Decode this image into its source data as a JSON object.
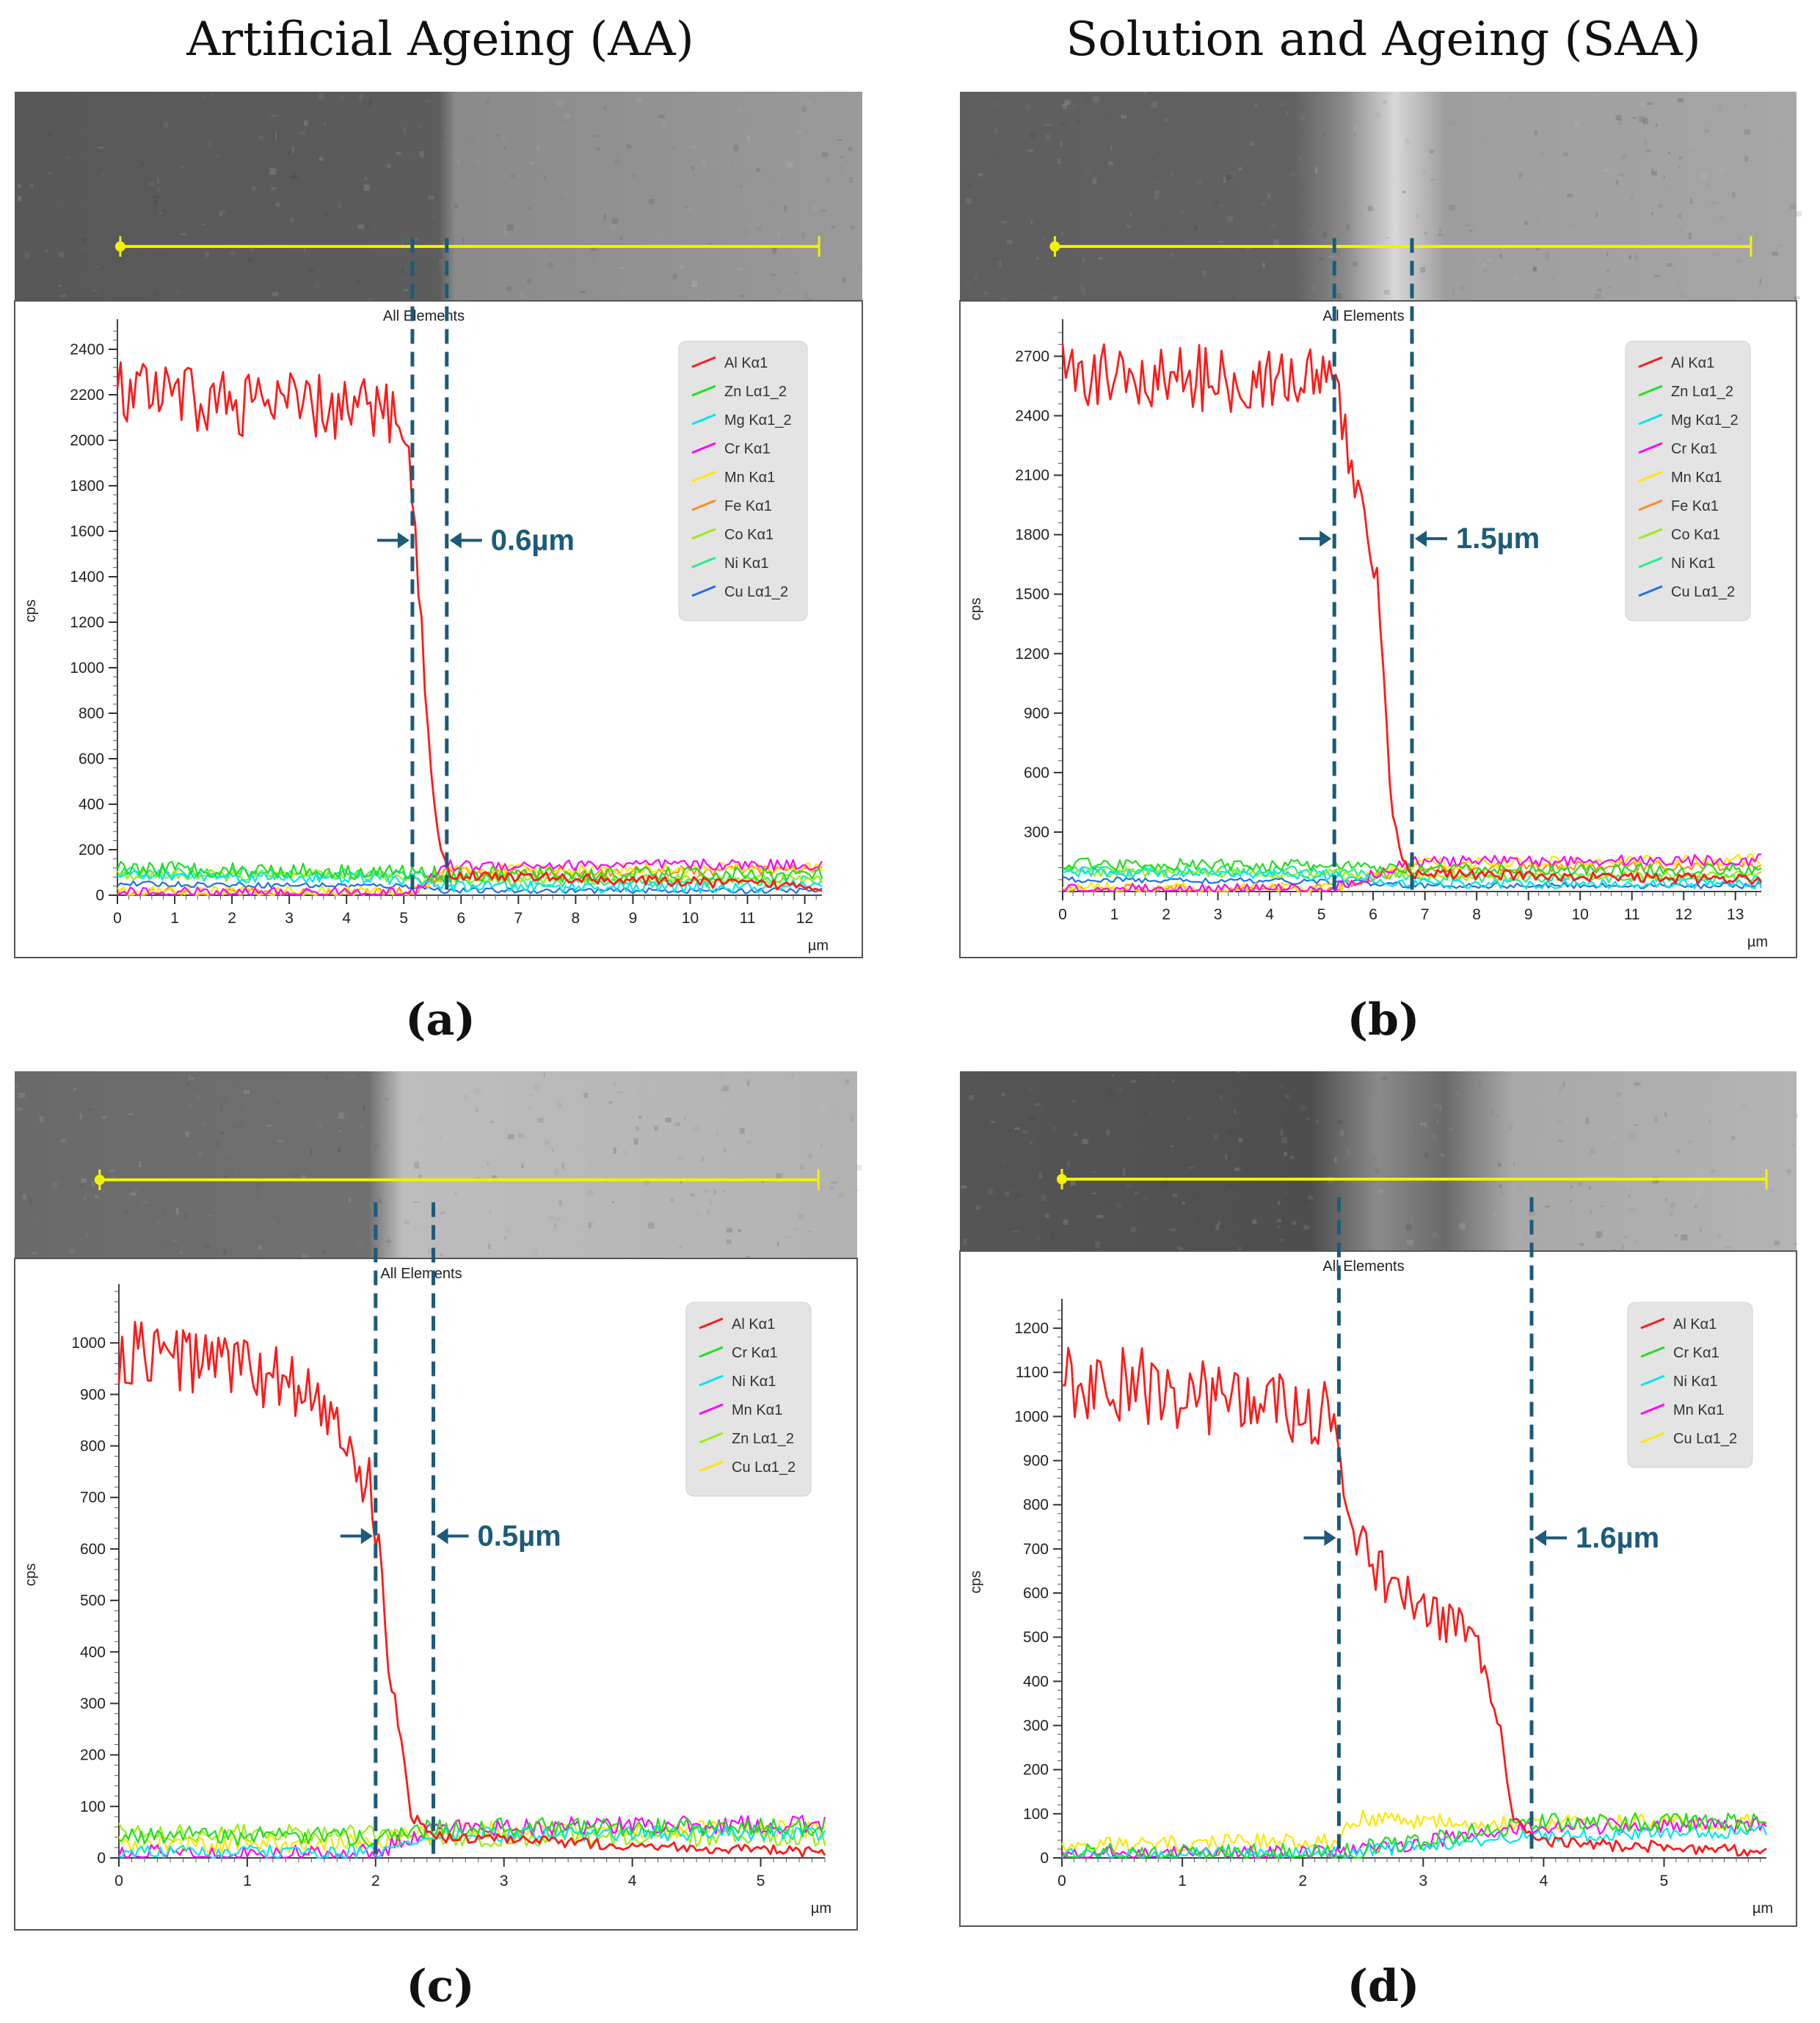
{
  "column_titles": [
    "Artificial Ageing (AA)",
    "Solution and Ageing (SAA)"
  ],
  "colors": {
    "Al": "#ff1a1a",
    "Zn": "#22dd22",
    "Mg": "#00e5ee",
    "Cr_ab": "#ff00ff",
    "Mn_ab": "#ffe600",
    "Fe": "#ff8c1a",
    "Co": "#99ee11",
    "Ni_ab": "#22ee88",
    "Cu_ab": "#1e6fe8",
    "Cr_cd": "#22dd22",
    "Ni_cd": "#00e5ee",
    "Mn_cd": "#ff00ff",
    "Cu_cd": "#ffe600",
    "marker": "#1c5b7a",
    "scan_line": "#f2f200"
  },
  "chart_data": [
    {
      "panel": "(a)",
      "type": "line",
      "title": "All Elements",
      "xlabel": "µm",
      "ylabel": "cps",
      "xlim": [
        0,
        12.3
      ],
      "ylim": [
        0,
        2500
      ],
      "x_ticks": [
        0,
        1,
        2,
        3,
        4,
        5,
        6,
        7,
        8,
        9,
        10,
        11,
        12
      ],
      "y_ticks": [
        0,
        200,
        400,
        600,
        800,
        1000,
        1200,
        1400,
        1600,
        1800,
        2000,
        2200,
        2400
      ],
      "legend": [
        "Al Kα1",
        "Zn Lα1_2",
        "Mg Kα1_2",
        "Cr Kα1",
        "Mn Kα1",
        "Fe Kα1",
        "Co Kα1",
        "Ni Kα1",
        "Cu Lα1_2"
      ],
      "legend_colors": [
        "Al",
        "Zn",
        "Mg",
        "Cr_ab",
        "Mn_ab",
        "Fe",
        "Co",
        "Ni_ab",
        "Cu_ab"
      ],
      "al_profile": [
        [
          0,
          2200
        ],
        [
          5.0,
          2120
        ],
        [
          5.1,
          1850
        ],
        [
          5.2,
          1600
        ],
        [
          5.35,
          1000
        ],
        [
          5.5,
          500
        ],
        [
          5.65,
          180
        ],
        [
          5.8,
          90
        ],
        [
          12.3,
          40
        ]
      ],
      "al_noise": 150,
      "minor_series": [
        {
          "color": "Zn",
          "x": [
            0,
            5.2,
            5.7,
            12.3
          ],
          "y": [
            120,
            100,
            90,
            90
          ],
          "noise": 35
        },
        {
          "color": "Mg",
          "x": [
            0,
            5.2,
            5.7,
            12.3
          ],
          "y": [
            90,
            70,
            40,
            30
          ],
          "noise": 25
        },
        {
          "color": "Cr_ab",
          "x": [
            0,
            5.2,
            5.7,
            12.3
          ],
          "y": [
            10,
            10,
            130,
            135
          ],
          "noise": 25
        },
        {
          "color": "Mn_ab",
          "x": [
            0,
            5.2,
            5.7,
            12.3
          ],
          "y": [
            15,
            15,
            110,
            120
          ],
          "noise": 25
        },
        {
          "color": "Fe",
          "x": [
            0,
            5.2,
            5.7,
            12.3
          ],
          "y": [
            10,
            10,
            100,
            110
          ],
          "noise": 25
        },
        {
          "color": "Co",
          "x": [
            0,
            5.2,
            5.7,
            12.3
          ],
          "y": [
            90,
            80,
            70,
            70
          ],
          "noise": 25
        },
        {
          "color": "Ni_ab",
          "x": [
            0,
            5.2,
            5.7,
            12.3
          ],
          "y": [
            100,
            90,
            60,
            60
          ],
          "noise": 25
        },
        {
          "color": "Cu_ab",
          "x": [
            0,
            5.2,
            5.7,
            12.3
          ],
          "y": [
            50,
            40,
            20,
            20
          ],
          "noise": 12
        }
      ],
      "markers": [
        5.15,
        5.75
      ],
      "marker_label": "0.6µm",
      "marker_label_y": 1560,
      "scan_x": [
        0.05,
        12.25
      ]
    },
    {
      "panel": "(b)",
      "type": "line",
      "title": "All Elements",
      "xlabel": "µm",
      "ylabel": "cps",
      "xlim": [
        0,
        13.5
      ],
      "ylim": [
        0,
        2850
      ],
      "x_ticks": [
        0,
        1,
        2,
        3,
        4,
        5,
        6,
        7,
        8,
        9,
        10,
        11,
        12,
        13
      ],
      "y_ticks": [
        300,
        600,
        900,
        1200,
        1500,
        1800,
        2100,
        2400,
        2700
      ],
      "legend": [
        "Al Kα1",
        "Zn Lα1_2",
        "Mg Kα1_2",
        "Cr Kα1",
        "Mn Kα1",
        "Fe Kα1",
        "Co Kα1",
        "Ni Kα1",
        "Cu Lα1_2"
      ],
      "legend_colors": [
        "Al",
        "Zn",
        "Mg",
        "Cr_ab",
        "Mn_ab",
        "Fe",
        "Co",
        "Ni_ab",
        "Cu_ab"
      ],
      "al_profile": [
        [
          0,
          2600
        ],
        [
          5.2,
          2580
        ],
        [
          5.3,
          2450
        ],
        [
          5.6,
          2150
        ],
        [
          5.8,
          1900
        ],
        [
          6.0,
          1650
        ],
        [
          6.1,
          1550
        ],
        [
          6.25,
          900
        ],
        [
          6.35,
          400
        ],
        [
          6.6,
          150
        ],
        [
          6.8,
          90
        ],
        [
          13.5,
          60
        ]
      ],
      "al_noise": 170,
      "minor_series": [
        {
          "color": "Zn",
          "x": [
            0,
            5.2,
            6.7,
            13.5
          ],
          "y": [
            140,
            130,
            110,
            110
          ],
          "noise": 30
        },
        {
          "color": "Mg",
          "x": [
            0,
            5.2,
            6.7,
            13.5
          ],
          "y": [
            100,
            80,
            40,
            40
          ],
          "noise": 25
        },
        {
          "color": "Cr_ab",
          "x": [
            0,
            5.2,
            6.7,
            13.5
          ],
          "y": [
            10,
            10,
            150,
            160
          ],
          "noise": 30
        },
        {
          "color": "Mn_ab",
          "x": [
            0,
            5.2,
            6.7,
            13.5
          ],
          "y": [
            15,
            15,
            140,
            160
          ],
          "noise": 30
        },
        {
          "color": "Fe",
          "x": [
            0,
            5.2,
            6.7,
            13.5
          ],
          "y": [
            10,
            10,
            120,
            130
          ],
          "noise": 25
        },
        {
          "color": "Co",
          "x": [
            0,
            5.2,
            6.7,
            13.5
          ],
          "y": [
            100,
            90,
            80,
            80
          ],
          "noise": 25
        },
        {
          "color": "Ni_ab",
          "x": [
            0,
            5.2,
            6.7,
            13.5
          ],
          "y": [
            110,
            100,
            70,
            70
          ],
          "noise": 25
        },
        {
          "color": "Cu_ab",
          "x": [
            0,
            5.2,
            6.7,
            13.5
          ],
          "y": [
            60,
            50,
            30,
            30
          ],
          "noise": 15
        }
      ],
      "markers": [
        5.25,
        6.75
      ],
      "marker_label": "1.5µm",
      "marker_label_y": 1780,
      "scan_x": [
        -0.15,
        13.3
      ]
    },
    {
      "panel": "(c)",
      "type": "line",
      "title": "All Elements",
      "xlabel": "µm",
      "ylabel": "cps",
      "xlim": [
        0,
        5.5
      ],
      "ylim": [
        0,
        1100
      ],
      "x_ticks": [
        0,
        1,
        2,
        3,
        4,
        5
      ],
      "y_ticks": [
        0,
        100,
        200,
        300,
        400,
        500,
        600,
        700,
        800,
        900,
        1000
      ],
      "legend": [
        "Al Kα1",
        "Cr Kα1",
        "Ni Kα1",
        "Mn Kα1",
        "Zn Lα1_2",
        "Cu Lα1_2"
      ],
      "legend_colors": [
        "Al",
        "Cr_cd",
        "Ni_cd",
        "Mn_cd",
        "Co",
        "Cu_cd"
      ],
      "al_profile": [
        [
          0,
          980
        ],
        [
          0.8,
          960
        ],
        [
          1.4,
          920
        ],
        [
          1.75,
          820
        ],
        [
          1.85,
          730
        ],
        [
          1.95,
          720
        ],
        [
          2.0,
          640
        ],
        [
          2.05,
          560
        ],
        [
          2.1,
          380
        ],
        [
          2.2,
          220
        ],
        [
          2.28,
          80
        ],
        [
          2.5,
          40
        ],
        [
          5.5,
          10
        ]
      ],
      "al_noise": 70,
      "minor_series": [
        {
          "color": "Cr_cd",
          "x": [
            0,
            2.0,
            2.5,
            5.5
          ],
          "y": [
            45,
            40,
            60,
            60
          ],
          "noise": 18
        },
        {
          "color": "Ni_cd",
          "x": [
            0,
            2.0,
            2.5,
            5.5
          ],
          "y": [
            10,
            10,
            45,
            50
          ],
          "noise": 15
        },
        {
          "color": "Mn_cd",
          "x": [
            0,
            2.0,
            2.5,
            5.5
          ],
          "y": [
            8,
            10,
            60,
            65
          ],
          "noise": 18
        },
        {
          "color": "Co",
          "x": [
            0,
            2.0,
            2.5,
            5.5
          ],
          "y": [
            50,
            45,
            40,
            40
          ],
          "noise": 18
        },
        {
          "color": "Cu_cd",
          "x": [
            0,
            2.0,
            2.5,
            5.5
          ],
          "y": [
            25,
            30,
            55,
            55
          ],
          "noise": 18
        }
      ],
      "markers": [
        2.0,
        2.45
      ],
      "marker_label": "0.5µm",
      "marker_label_y": 625,
      "scan_x": [
        -0.15,
        5.45
      ]
    },
    {
      "panel": "(d)",
      "type": "line",
      "title": "All Elements",
      "xlabel": "µm",
      "ylabel": "cps",
      "xlim": [
        0,
        5.85
      ],
      "ylim": [
        0,
        1250
      ],
      "x_ticks": [
        0,
        1,
        2,
        3,
        4,
        5
      ],
      "y_ticks": [
        0,
        100,
        200,
        300,
        400,
        500,
        600,
        700,
        800,
        900,
        1000,
        1100,
        1200
      ],
      "legend": [
        "Al Kα1",
        "Cr Kα1",
        "Ni Kα1",
        "Mn Kα1",
        "Cu Lα1_2"
      ],
      "legend_colors": [
        "Al",
        "Cr_cd",
        "Ni_cd",
        "Mn_cd",
        "Cu_cd"
      ],
      "al_profile": [
        [
          0,
          1080
        ],
        [
          1.0,
          1060
        ],
        [
          2.2,
          990
        ],
        [
          2.3,
          980
        ],
        [
          2.35,
          750
        ],
        [
          2.6,
          650
        ],
        [
          3.0,
          560
        ],
        [
          3.3,
          520
        ],
        [
          3.5,
          450
        ],
        [
          3.65,
          280
        ],
        [
          3.75,
          80
        ],
        [
          4.0,
          35
        ],
        [
          5.85,
          15
        ]
      ],
      "al_noise": 90,
      "minor_series": [
        {
          "color": "Cr_cd",
          "x": [
            0,
            2.3,
            3.9,
            5.85
          ],
          "y": [
            10,
            10,
            80,
            80
          ],
          "noise": 22
        },
        {
          "color": "Ni_cd",
          "x": [
            0,
            2.3,
            3.9,
            5.85
          ],
          "y": [
            8,
            10,
            50,
            60
          ],
          "noise": 15
        },
        {
          "color": "Mn_cd",
          "x": [
            0,
            2.3,
            3.9,
            5.85
          ],
          "y": [
            8,
            10,
            70,
            75
          ],
          "noise": 18
        },
        {
          "color": "Cu_cd",
          "x": [
            0,
            2.3,
            2.4,
            3.9,
            5.85
          ],
          "y": [
            25,
            40,
            90,
            80,
            80
          ],
          "noise": 20
        }
      ],
      "markers": [
        2.3,
        3.9
      ],
      "marker_label": "1.6µm",
      "marker_label_y": 725,
      "scan_x": [
        0.0,
        5.85
      ]
    }
  ],
  "panel_labels": [
    "(a)",
    "(b)",
    "(c)",
    "(d)"
  ]
}
